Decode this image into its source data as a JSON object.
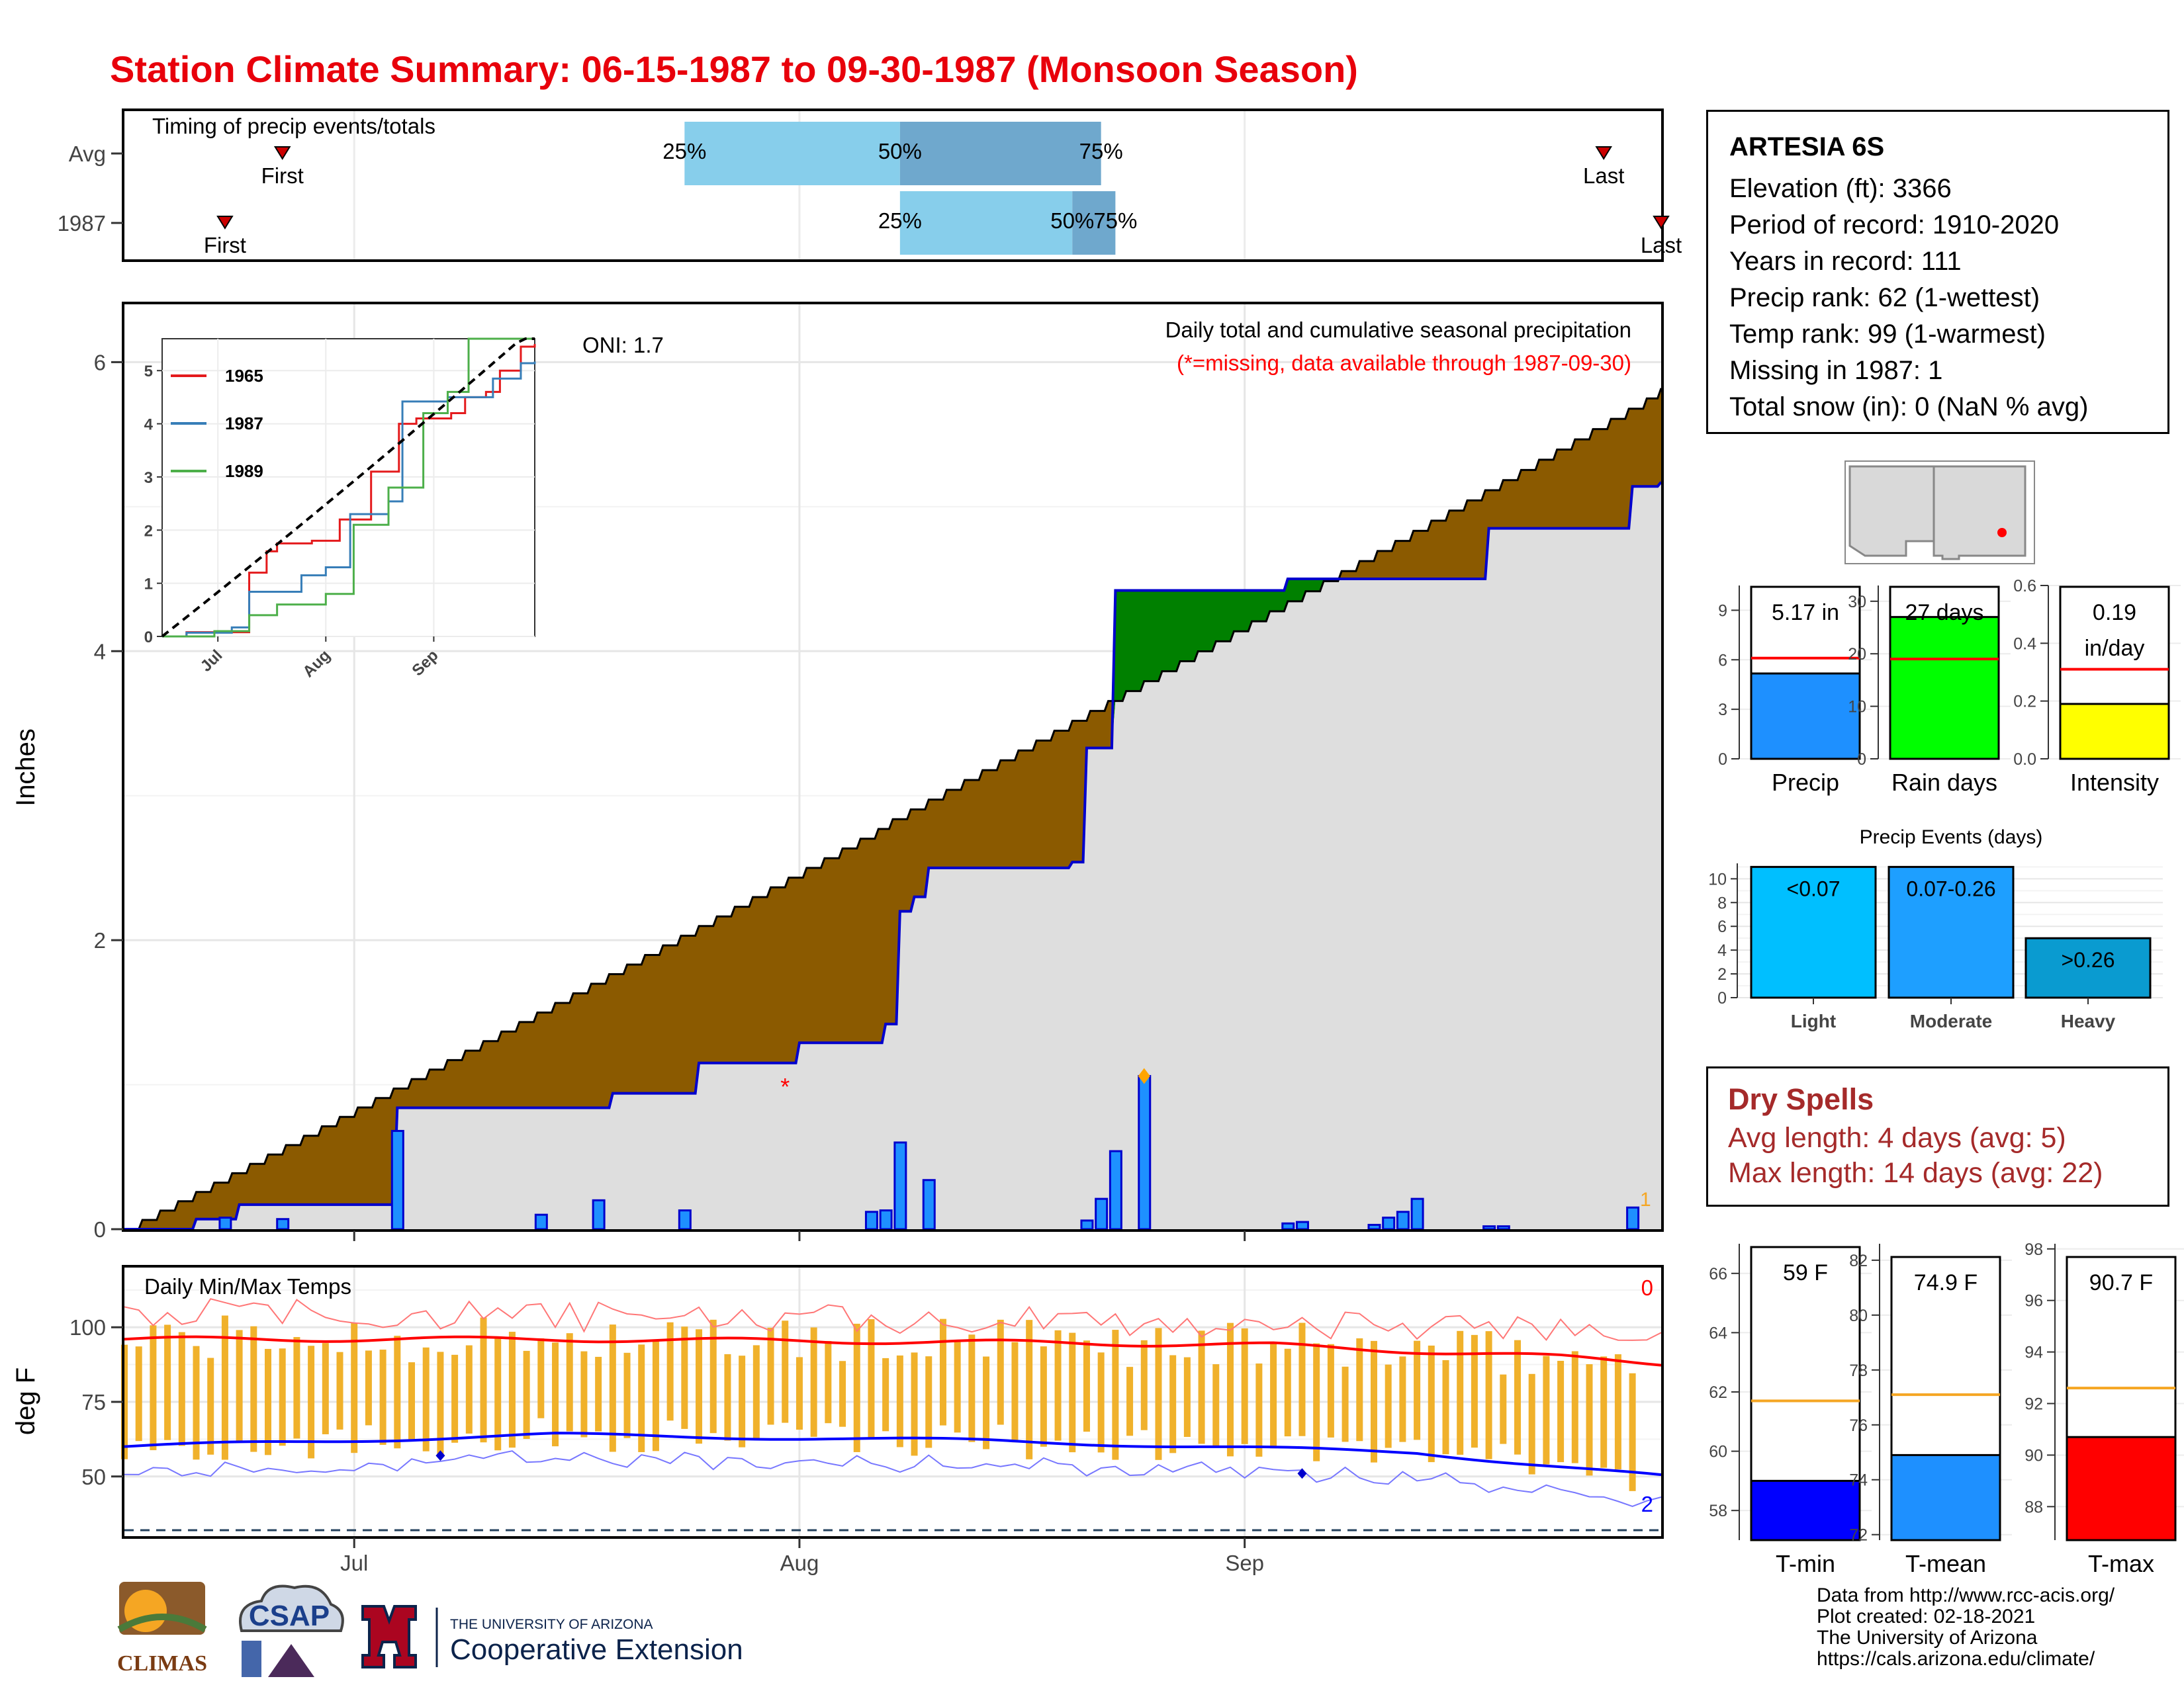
{
  "title": "Station Climate Summary: 06-15-1987 to 09-30-1987 (Monsoon Season)",
  "station": {
    "name": "ARTESIA 6S",
    "lines": [
      "Elevation (ft): 3366",
      "Period of record: 1910-2020",
      "Years in record: 111",
      "Precip rank: 62 (1-wettest)",
      "Temp rank: 99 (1-warmest)",
      "Missing in 1987: 1",
      "Total snow (in): 0 (NaN % avg)"
    ]
  },
  "dry_spells": {
    "heading": "Dry Spells",
    "avg": "Avg length: 4 days (avg: 5)",
    "max": "Max length: 14 days (avg: 22)"
  },
  "credits": [
    "Data from http://www.rcc-acis.org/",
    "Plot created: 02-18-2021",
    "The University of Arizona",
    "https://cals.arizona.edu/climate/"
  ],
  "logos": {
    "climas": "CLIMAS",
    "csap": "CSAP",
    "ua_small": "THE UNIVERSITY OF ARIZONA",
    "ua_big": "Cooperative Extension"
  },
  "colors": {
    "title": "#e8000b",
    "deficit": "#8b5a00",
    "surplus": "#008000",
    "obs": "#0000cd",
    "bar": "#1e90ff",
    "tmax": "#ff0000",
    "tmin": "#0000ff",
    "range": "#f0b12b"
  },
  "chart_data": [
    {
      "id": "timing",
      "type": "bar",
      "label": "Timing of precip events/totals",
      "rows": [
        "Avg",
        "1987"
      ],
      "avg": {
        "first": "Jun 26",
        "q25": "Jul 24",
        "q50": "Aug 8",
        "q75": "Aug 22",
        "last": "Sep 26"
      },
      "y1987": {
        "first": "Jun 22",
        "q25": "Aug 8",
        "q50": "Aug 20",
        "q75": "Aug 23",
        "last": "Sep 30"
      },
      "markers": {
        "first": "First",
        "last": "Last",
        "q25": "25%",
        "q50": "50%",
        "q75": "75%"
      }
    },
    {
      "id": "precip",
      "type": "area",
      "title": "Daily total and cumulative seasonal precipitation",
      "subtitle": "(*=missing, data available through 1987-09-30)",
      "oni": "ONI: 1.7",
      "ylabel": "Inches",
      "ylim": [
        0,
        6.4
      ],
      "yticks": [
        0,
        2,
        4,
        6
      ],
      "xticks": [
        "Jul",
        "Aug",
        "Sep"
      ],
      "normal_final": 5.82,
      "cumulative_1987": [
        [
          "Jun 15",
          0
        ],
        [
          "Jun 20",
          0.07
        ],
        [
          "Jun 23",
          0.17
        ],
        [
          "Jul 3",
          0.17
        ],
        [
          "Jul 4",
          0.84
        ],
        [
          "Jul 19",
          0.94
        ],
        [
          "Jul 25",
          1.15
        ],
        [
          "Aug 1",
          1.29
        ],
        [
          "Aug 6",
          1.29
        ],
        [
          "Aug 7",
          1.42
        ],
        [
          "Aug 8",
          1.58
        ],
        [
          "Aug 8",
          2.2
        ],
        [
          "Aug 9",
          2.3
        ],
        [
          "Aug 10",
          2.5
        ],
        [
          "Aug 20",
          2.54
        ],
        [
          "Aug 21",
          3.33
        ],
        [
          "Aug 23",
          3.83
        ],
        [
          "Aug 23",
          4.42
        ],
        [
          "Sep 4",
          4.5
        ],
        [
          "Sep 14",
          4.5
        ],
        [
          "Sep 18",
          4.85
        ],
        [
          "Sep 28",
          5.14
        ],
        [
          "Sep 30",
          5.17
        ]
      ],
      "daily_bars": [
        [
          "Jun 22",
          0.08
        ],
        [
          "Jun 26",
          0.07
        ],
        [
          "Jul 4",
          0.68
        ],
        [
          "Jul 14",
          0.1
        ],
        [
          "Jul 18",
          0.2
        ],
        [
          "Jul 24",
          0.13
        ],
        [
          "Aug 6",
          0.12
        ],
        [
          "Aug 7",
          0.13
        ],
        [
          "Aug 8",
          0.6
        ],
        [
          "Aug 10",
          0.34
        ],
        [
          "Aug 21",
          0.06
        ],
        [
          "Aug 22",
          0.21
        ],
        [
          "Aug 23",
          0.54
        ],
        [
          "Aug 25",
          1.06
        ],
        [
          "Sep 4",
          0.04
        ],
        [
          "Sep 5",
          0.05
        ],
        [
          "Sep 10",
          0.03
        ],
        [
          "Sep 11",
          0.08
        ],
        [
          "Sep 12",
          0.12
        ],
        [
          "Sep 13",
          0.21
        ],
        [
          "Sep 18",
          0.02
        ],
        [
          "Sep 19",
          0.02
        ],
        [
          "Sep 28",
          0.15
        ]
      ],
      "missing_marker": "*",
      "missing_count": "1"
    },
    {
      "id": "inset",
      "type": "line",
      "series": [
        {
          "name": "1965"
        },
        {
          "name": "1987"
        },
        {
          "name": "1989"
        }
      ],
      "ylim": [
        0,
        5.6
      ],
      "yticks": [
        "0",
        "1",
        "2",
        "3",
        "4",
        "5"
      ],
      "xticks": [
        "Jul",
        "Aug",
        "Sep"
      ]
    },
    {
      "id": "temps",
      "type": "line",
      "title": "Daily Min/Max Temps",
      "ylabel": "deg F",
      "ylim": [
        30,
        120
      ],
      "yticks": [
        "50",
        "75",
        "100"
      ],
      "xticks": [
        "Jul",
        "Aug",
        "Sep"
      ],
      "tmax_normal": [
        [
          0,
          96
        ],
        [
          30,
          96
        ],
        [
          60,
          95
        ],
        [
          80,
          94
        ],
        [
          100,
          90
        ],
        [
          107,
          88
        ]
      ],
      "tmin_normal": [
        [
          0,
          60
        ],
        [
          30,
          64
        ],
        [
          60,
          62
        ],
        [
          90,
          58
        ],
        [
          107,
          50
        ]
      ],
      "count_max": "0",
      "count_min": "2",
      "freezing": 32
    },
    {
      "id": "summary",
      "type": "bar",
      "panels": [
        {
          "name": "Precip",
          "value": 5.17,
          "label": "5.17 in",
          "avg": 6.1,
          "yticks": [
            "0",
            "3",
            "6",
            "9"
          ],
          "ylim": [
            0,
            10.5
          ]
        },
        {
          "name": "Rain days",
          "value": 27,
          "label": "27 days",
          "avg": 19,
          "yticks": [
            "0",
            "10",
            "20",
            "30"
          ],
          "ylim": [
            0,
            33
          ]
        },
        {
          "name": "Intensity",
          "value": 0.19,
          "label": [
            "0.19",
            "in/day"
          ],
          "avg": 0.31,
          "yticks": [
            "0.0",
            "0.2",
            "0.4",
            "0.6"
          ],
          "ylim": [
            0,
            0.6
          ]
        }
      ]
    },
    {
      "id": "events",
      "type": "bar",
      "title": "Precip Events (days)",
      "categories": [
        "Light",
        "Moderate",
        "Heavy"
      ],
      "labels": [
        "<0.07",
        "0.07-0.26",
        ">0.26"
      ],
      "values": [
        11,
        11,
        5
      ],
      "yticks": [
        "0",
        "2",
        "4",
        "6",
        "8",
        "10"
      ]
    },
    {
      "id": "temp_summary",
      "type": "bar",
      "panels": [
        {
          "name": "T-min",
          "value": 59,
          "label": "59 F",
          "avg": 61.7,
          "ylim": [
            57,
            67
          ],
          "yticks": [
            "58",
            "60",
            "62",
            "64",
            "66"
          ]
        },
        {
          "name": "T-mean",
          "value": 74.9,
          "label": "74.9 F",
          "avg": 77.1,
          "ylim": [
            71.8,
            82.6
          ],
          "yticks": [
            "72",
            "74",
            "76",
            "78",
            "80",
            "82"
          ]
        },
        {
          "name": "T-max",
          "value": 90.7,
          "label": "90.7 F",
          "avg": 92.6,
          "ylim": [
            86.7,
            98.2
          ],
          "yticks": [
            "88",
            "90",
            "92",
            "94",
            "96",
            "98"
          ]
        }
      ]
    }
  ]
}
